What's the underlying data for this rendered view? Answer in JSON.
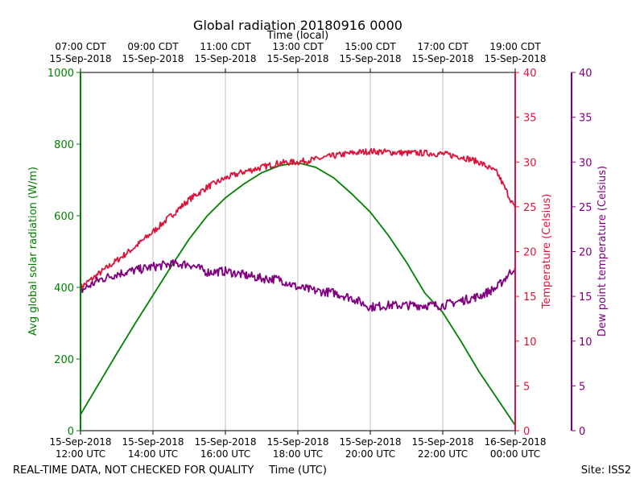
{
  "chart_data": {
    "type": "line",
    "title": "Global radiation 20180916 0000",
    "top_axis_label": "Time (local)",
    "xlabel": "Time (UTC)",
    "ylabel_left": "Avg global solar radiation (W/m)",
    "ylabel_right1": "Temperature (Celsius)",
    "ylabel_right2": "Dew point temperature (Celsius)",
    "footer_left": "REAL-TIME DATA, NOT CHECKED FOR QUALITY",
    "footer_right": "Site: ISS2",
    "x_range_hours_utc": [
      12,
      24
    ],
    "ylim_left": [
      0,
      1000
    ],
    "ylim_right1": [
      0,
      40
    ],
    "ylim_right2": [
      0,
      40
    ],
    "grid": "vertical",
    "left_ticks": [
      "0",
      "200",
      "400",
      "600",
      "800",
      "1000"
    ],
    "temp_ticks": [
      "0",
      "5",
      "10",
      "15",
      "20",
      "25",
      "30",
      "35",
      "40"
    ],
    "dew_ticks": [
      "0",
      "5",
      "10",
      "15",
      "20",
      "25",
      "30",
      "35",
      "40"
    ],
    "bottom_ticks": [
      {
        "line1": "15-Sep-2018",
        "line2": "12:00 UTC"
      },
      {
        "line1": "15-Sep-2018",
        "line2": "14:00 UTC"
      },
      {
        "line1": "15-Sep-2018",
        "line2": "16:00 UTC"
      },
      {
        "line1": "15-Sep-2018",
        "line2": "18:00 UTC"
      },
      {
        "line1": "15-Sep-2018",
        "line2": "20:00 UTC"
      },
      {
        "line1": "15-Sep-2018",
        "line2": "22:00 UTC"
      },
      {
        "line1": "16-Sep-2018",
        "line2": "00:00 UTC"
      }
    ],
    "top_ticks": [
      {
        "line1": "07:00 CDT",
        "line2": "15-Sep-2018"
      },
      {
        "line1": "09:00 CDT",
        "line2": "15-Sep-2018"
      },
      {
        "line1": "11:00 CDT",
        "line2": "15-Sep-2018"
      },
      {
        "line1": "13:00 CDT",
        "line2": "15-Sep-2018"
      },
      {
        "line1": "15:00 CDT",
        "line2": "15-Sep-2018"
      },
      {
        "line1": "17:00 CDT",
        "line2": "15-Sep-2018"
      },
      {
        "line1": "19:00 CDT",
        "line2": "15-Sep-2018"
      }
    ],
    "series": [
      {
        "name": "Avg global solar radiation",
        "axis": "left",
        "color": "#008000",
        "x": [
          12.0,
          12.5,
          13.0,
          13.5,
          14.0,
          14.5,
          15.0,
          15.5,
          16.0,
          16.5,
          17.0,
          17.5,
          18.0,
          18.5,
          19.0,
          19.5,
          20.0,
          20.5,
          21.0,
          21.5,
          22.0,
          22.5,
          23.0,
          23.5,
          24.0
        ],
        "values": [
          45,
          130,
          215,
          298,
          378,
          458,
          535,
          600,
          650,
          688,
          720,
          740,
          748,
          735,
          705,
          660,
          610,
          545,
          470,
          385,
          330,
          250,
          165,
          90,
          15
        ]
      },
      {
        "name": "Temperature",
        "axis": "right1",
        "color": "#dc143c",
        "x": [
          12.0,
          12.5,
          13.0,
          13.5,
          14.0,
          14.5,
          15.0,
          15.5,
          16.0,
          16.5,
          17.0,
          17.5,
          18.0,
          18.5,
          19.0,
          19.5,
          20.0,
          20.5,
          21.0,
          21.5,
          22.0,
          22.5,
          23.0,
          23.5,
          24.0
        ],
        "values": [
          16.0,
          17.5,
          19.0,
          20.5,
          22.2,
          24.0,
          25.8,
          27.2,
          28.2,
          28.9,
          29.4,
          29.9,
          30.0,
          30.3,
          30.7,
          31.0,
          31.2,
          31.1,
          31.0,
          31.0,
          30.9,
          30.6,
          30.0,
          28.8,
          24.8
        ]
      },
      {
        "name": "Dew point temperature",
        "axis": "right2",
        "color": "#800080",
        "x": [
          12.0,
          12.5,
          13.0,
          13.5,
          14.0,
          14.5,
          15.0,
          15.5,
          16.0,
          16.5,
          17.0,
          17.5,
          18.0,
          18.5,
          19.0,
          19.5,
          20.0,
          20.5,
          21.0,
          21.5,
          22.0,
          22.5,
          23.0,
          23.5,
          24.0
        ],
        "values": [
          15.6,
          16.8,
          17.5,
          17.9,
          18.3,
          18.6,
          18.6,
          17.7,
          17.8,
          17.4,
          17.0,
          16.9,
          16.0,
          15.6,
          15.4,
          14.8,
          13.8,
          14.0,
          14.0,
          14.0,
          14.0,
          14.5,
          15.0,
          16.0,
          18.3
        ]
      }
    ]
  }
}
